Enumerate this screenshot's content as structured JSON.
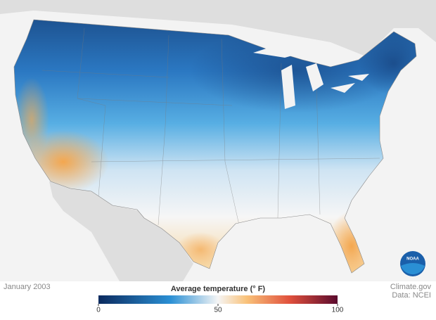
{
  "map": {
    "date": "January 2003",
    "logo": "NOAA"
  },
  "legend": {
    "title": "Average temperature (° F)",
    "range": [
      0,
      100
    ],
    "ticks": [
      0,
      50,
      100
    ]
  },
  "credits": {
    "source": "Climate.gov",
    "data": "Data: NCEI"
  }
}
